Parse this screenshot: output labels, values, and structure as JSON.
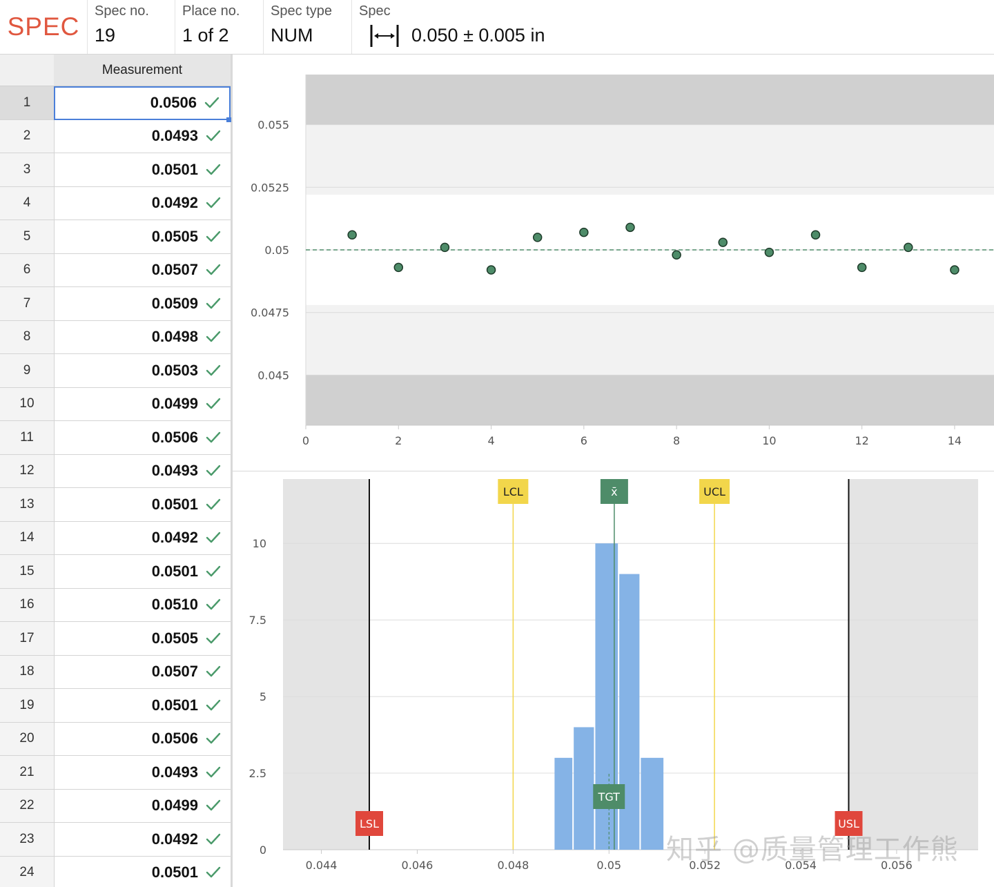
{
  "header": {
    "brand": "SPEC",
    "spec_no_label": "Spec no.",
    "spec_no": "19",
    "place_no_label": "Place no.",
    "place_no": "1 of 2",
    "spec_type_label": "Spec type",
    "spec_type": "NUM",
    "spec_label": "Spec",
    "spec_icon": "diameter-width-icon",
    "spec_value": "0.050 ± 0.005  in"
  },
  "table": {
    "column_header": "Measurement",
    "selected_row": 1,
    "rows": [
      {
        "index": "1",
        "value": "0.0506"
      },
      {
        "index": "2",
        "value": "0.0493"
      },
      {
        "index": "3",
        "value": "0.0501"
      },
      {
        "index": "4",
        "value": "0.0492"
      },
      {
        "index": "5",
        "value": "0.0505"
      },
      {
        "index": "6",
        "value": "0.0507"
      },
      {
        "index": "7",
        "value": "0.0509"
      },
      {
        "index": "8",
        "value": "0.0498"
      },
      {
        "index": "9",
        "value": "0.0503"
      },
      {
        "index": "10",
        "value": "0.0499"
      },
      {
        "index": "11",
        "value": "0.0506"
      },
      {
        "index": "12",
        "value": "0.0493"
      },
      {
        "index": "13",
        "value": "0.0501"
      },
      {
        "index": "14",
        "value": "0.0492"
      },
      {
        "index": "15",
        "value": "0.0501"
      },
      {
        "index": "16",
        "value": "0.0510"
      },
      {
        "index": "17",
        "value": "0.0505"
      },
      {
        "index": "18",
        "value": "0.0507"
      },
      {
        "index": "19",
        "value": "0.0501"
      },
      {
        "index": "20",
        "value": "0.0506"
      },
      {
        "index": "21",
        "value": "0.0493"
      },
      {
        "index": "22",
        "value": "0.0499"
      },
      {
        "index": "23",
        "value": "0.0492"
      },
      {
        "index": "24",
        "value": "0.0501"
      }
    ],
    "check_icon": "check-icon",
    "check_color": "#4a9a6a"
  },
  "colors": {
    "brand": "#e0573f",
    "point_fill": "#4e8c69",
    "target_line": "#4e8c69",
    "bar": "#85b3e6",
    "control_limit": "#f2d64b",
    "spec_limit": "#e0473c",
    "band_dark": "#d0d0d0",
    "band_light": "#f2f2f2"
  },
  "chart_data": [
    {
      "type": "scatter",
      "x": [
        1,
        2,
        3,
        4,
        5,
        6,
        7,
        8,
        9,
        10,
        11,
        12,
        13,
        14
      ],
      "y": [
        0.0506,
        0.0493,
        0.0501,
        0.0492,
        0.0505,
        0.0507,
        0.0509,
        0.0498,
        0.0503,
        0.0499,
        0.0506,
        0.0493,
        0.0501,
        0.0492
      ],
      "xlim": [
        0,
        14.85
      ],
      "ylim": [
        0.043,
        0.057
      ],
      "xticks": [
        "0",
        "2",
        "4",
        "6",
        "8",
        "10",
        "12",
        "14"
      ],
      "xtick_values": [
        0,
        2,
        4,
        6,
        8,
        10,
        12,
        14
      ],
      "yticks": [
        "0.055",
        "0.0525",
        "0.05",
        "0.0475",
        "0.045"
      ],
      "ytick_values": [
        0.055,
        0.0525,
        0.05,
        0.0475,
        0.045
      ],
      "target": 0.05,
      "upper_bands": [
        [
          0.055,
          0.057
        ],
        [
          0.0522,
          0.055
        ]
      ],
      "lower_bands": [
        [
          0.043,
          0.045
        ],
        [
          0.045,
          0.0478
        ]
      ],
      "grid": true
    },
    {
      "type": "bar",
      "bins": [
        {
          "from": 0.04885,
          "to": 0.04925,
          "count": 3
        },
        {
          "from": 0.04925,
          "to": 0.0497,
          "count": 4
        },
        {
          "from": 0.0497,
          "to": 0.0502,
          "count": 10
        },
        {
          "from": 0.0502,
          "to": 0.05065,
          "count": 9
        },
        {
          "from": 0.05065,
          "to": 0.05115,
          "count": 3
        }
      ],
      "xlim": [
        0.0432,
        0.0577
      ],
      "ylim": [
        0,
        12.1
      ],
      "xticks": [
        "0.044",
        "0.046",
        "0.048",
        "0.05",
        "0.052",
        "0.054",
        "0.056"
      ],
      "xtick_values": [
        0.044,
        0.046,
        0.048,
        0.05,
        0.052,
        0.054,
        0.056
      ],
      "yticks": [
        "0",
        "2.5",
        "5",
        "7.5",
        "10"
      ],
      "ytick_values": [
        0,
        2.5,
        5,
        7.5,
        10
      ],
      "markers": [
        {
          "label": "LSL",
          "value": 0.045,
          "kind": "spec"
        },
        {
          "label": "USL",
          "value": 0.055,
          "kind": "spec"
        },
        {
          "label": "LCL",
          "value": 0.048,
          "kind": "control"
        },
        {
          "label": "UCL",
          "value": 0.0522,
          "kind": "control"
        },
        {
          "label": "x̄",
          "value": 0.05011,
          "kind": "mean"
        },
        {
          "label": "TGT",
          "value": 0.05,
          "kind": "target"
        }
      ],
      "grid": true
    }
  ],
  "watermark": "知乎 @质量管理工作熊"
}
